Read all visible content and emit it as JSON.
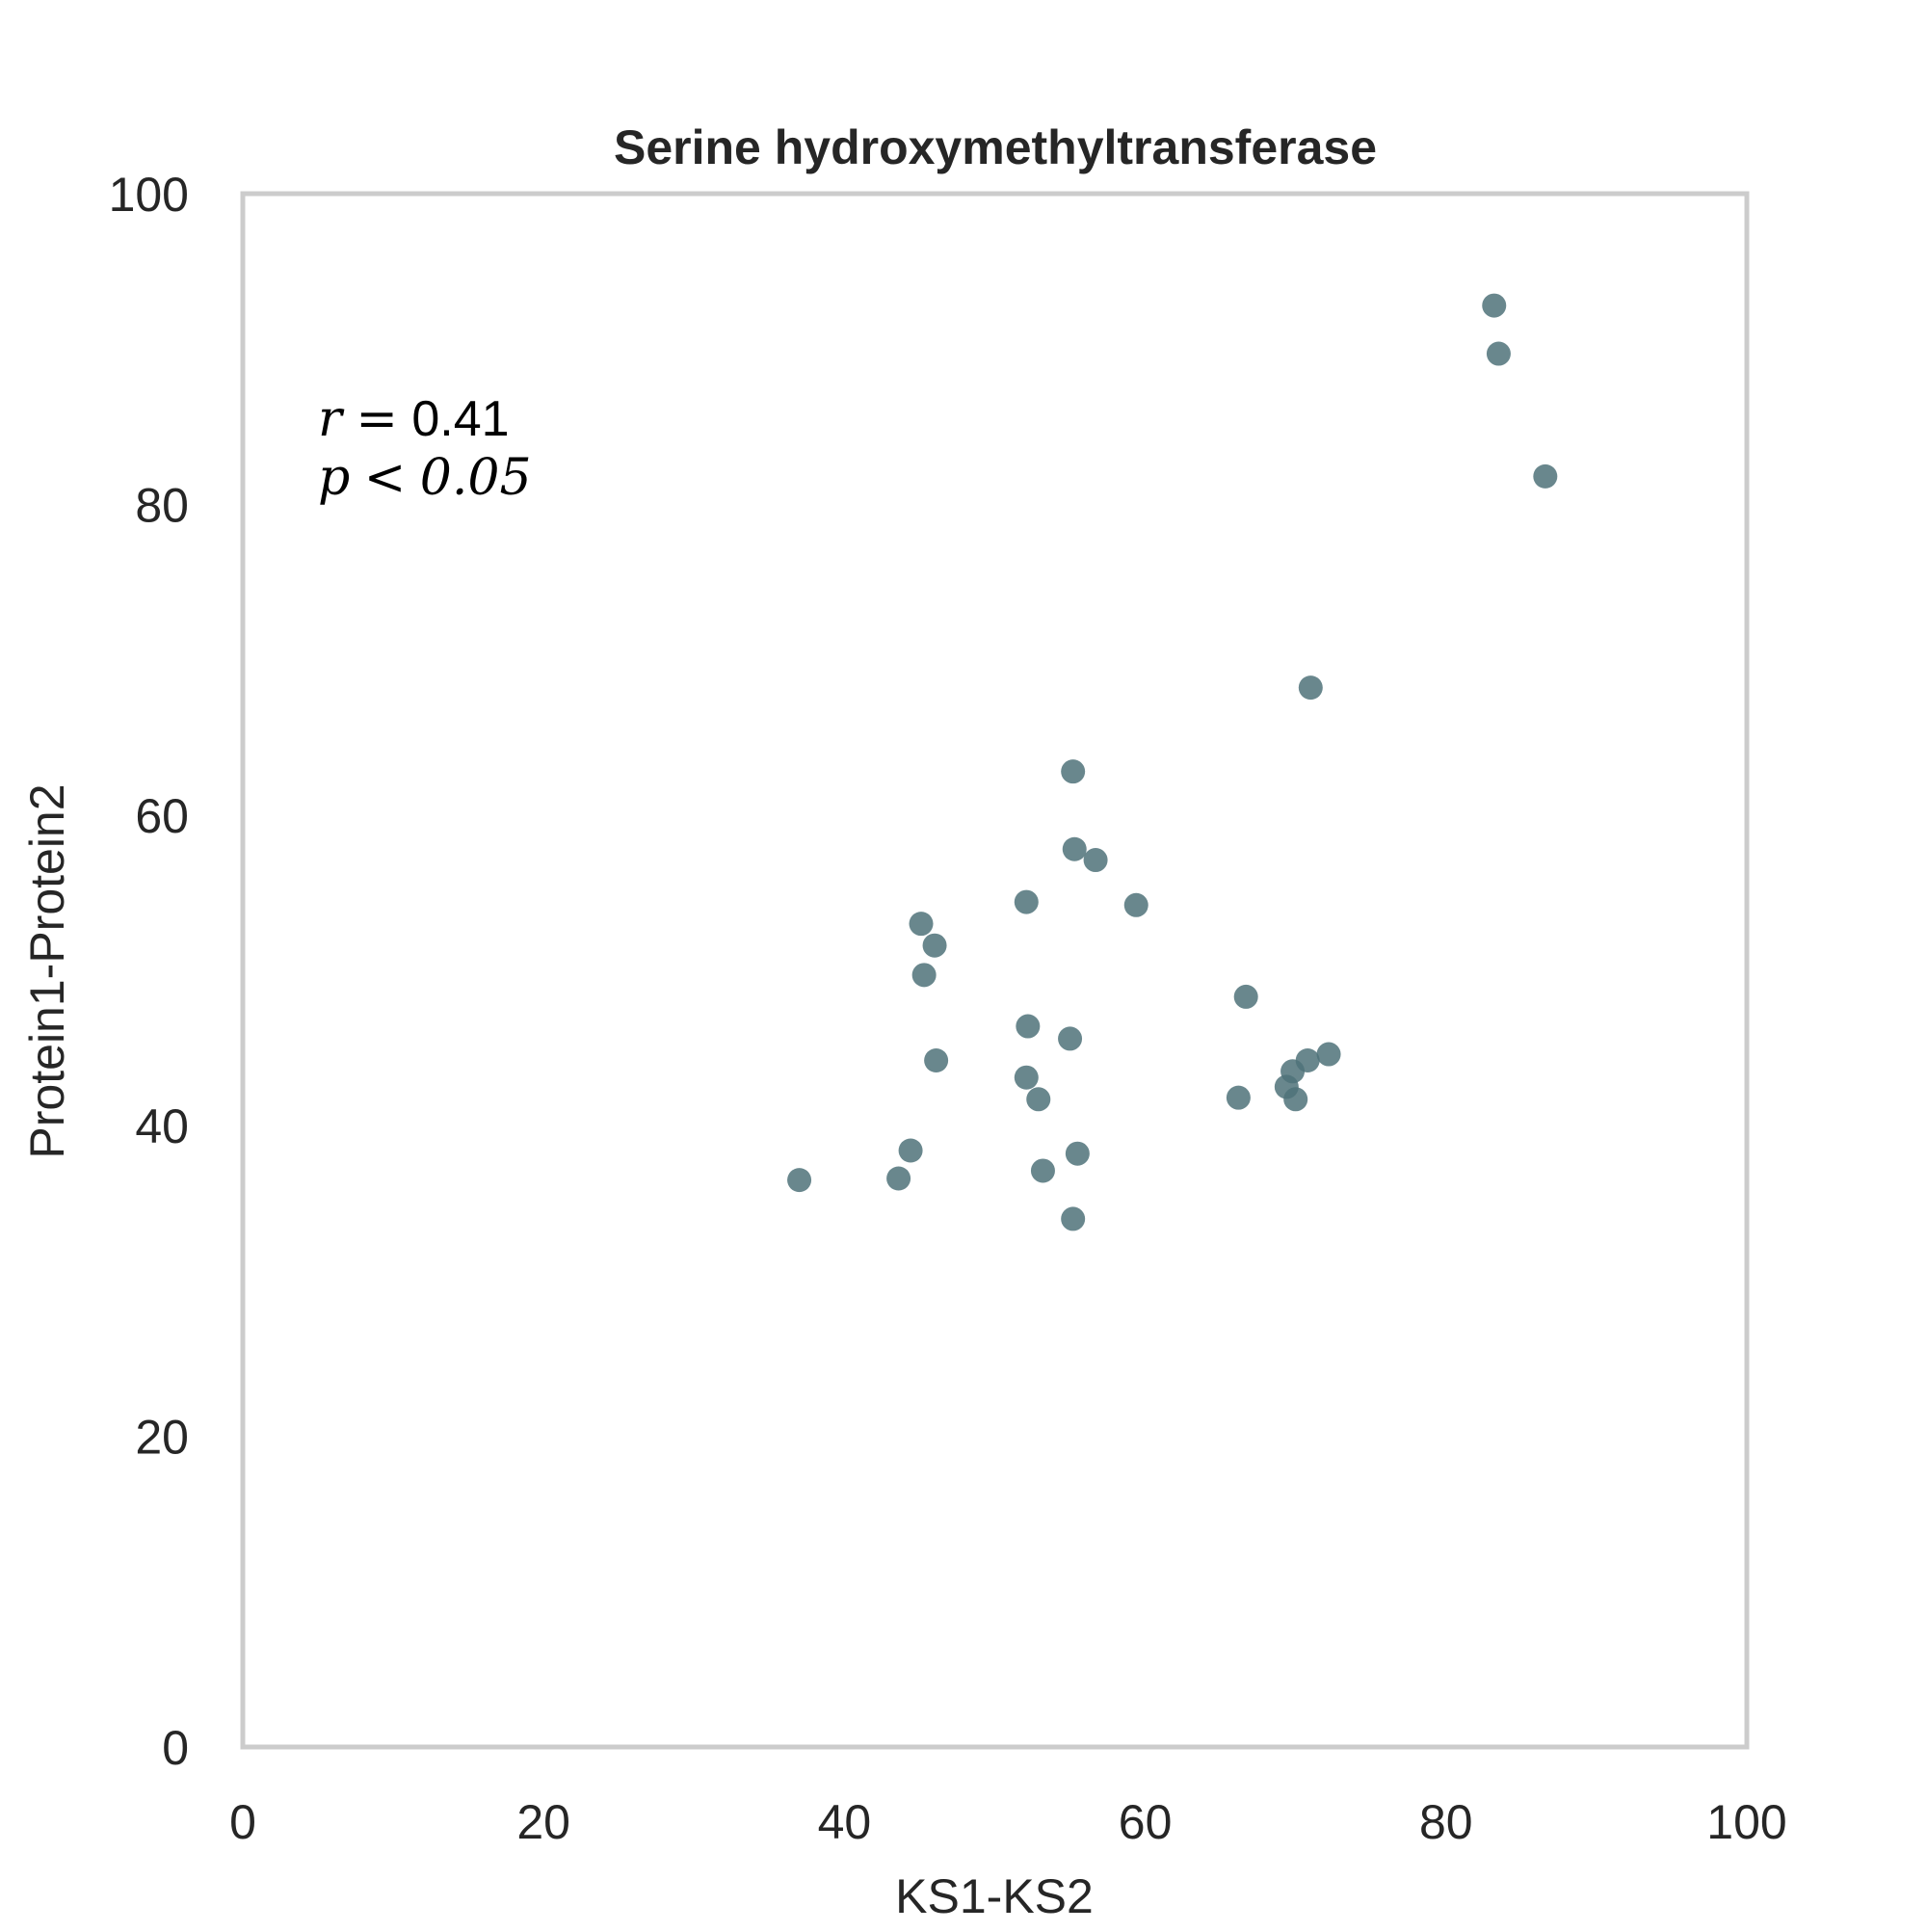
{
  "chart_data": {
    "type": "scatter",
    "title": "Serine hydroxymethyltransferase",
    "xlabel": "KS1-KS2",
    "ylabel": "Protein1-Protein2",
    "xlim": [
      0,
      100
    ],
    "ylim": [
      0,
      100
    ],
    "xticks": [
      "0",
      "20",
      "40",
      "60",
      "80",
      "100"
    ],
    "yticks": [
      "0",
      "20",
      "40",
      "60",
      "80",
      "100"
    ],
    "grid": false,
    "annotation": {
      "r_symbol": "r",
      "r_op": "=",
      "r_value": "0.41",
      "p_symbol": "p",
      "p_op": "<",
      "p_value": "0.05"
    },
    "colors": {
      "points": "#4f7279",
      "frame": "#cccccc",
      "text": "#262626"
    },
    "series": [
      {
        "points": [
          [
            37.0,
            36.5
          ],
          [
            43.6,
            36.6
          ],
          [
            44.4,
            38.4
          ],
          [
            45.1,
            53.0
          ],
          [
            45.3,
            49.7
          ],
          [
            46.0,
            51.6
          ],
          [
            46.1,
            44.2
          ],
          [
            52.1,
            54.4
          ],
          [
            52.2,
            46.4
          ],
          [
            52.1,
            43.1
          ],
          [
            52.9,
            41.7
          ],
          [
            53.2,
            37.1
          ],
          [
            55.0,
            45.6
          ],
          [
            55.2,
            62.8
          ],
          [
            55.3,
            57.8
          ],
          [
            55.2,
            34.0
          ],
          [
            55.5,
            38.2
          ],
          [
            56.7,
            57.1
          ],
          [
            59.4,
            54.2
          ],
          [
            66.2,
            41.8
          ],
          [
            66.7,
            48.3
          ],
          [
            69.4,
            42.5
          ],
          [
            69.8,
            43.5
          ],
          [
            70.0,
            41.7
          ],
          [
            70.8,
            44.2
          ],
          [
            71.0,
            68.2
          ],
          [
            72.2,
            44.6
          ],
          [
            83.2,
            92.8
          ],
          [
            83.5,
            89.7
          ],
          [
            86.6,
            81.8
          ]
        ]
      }
    ]
  }
}
